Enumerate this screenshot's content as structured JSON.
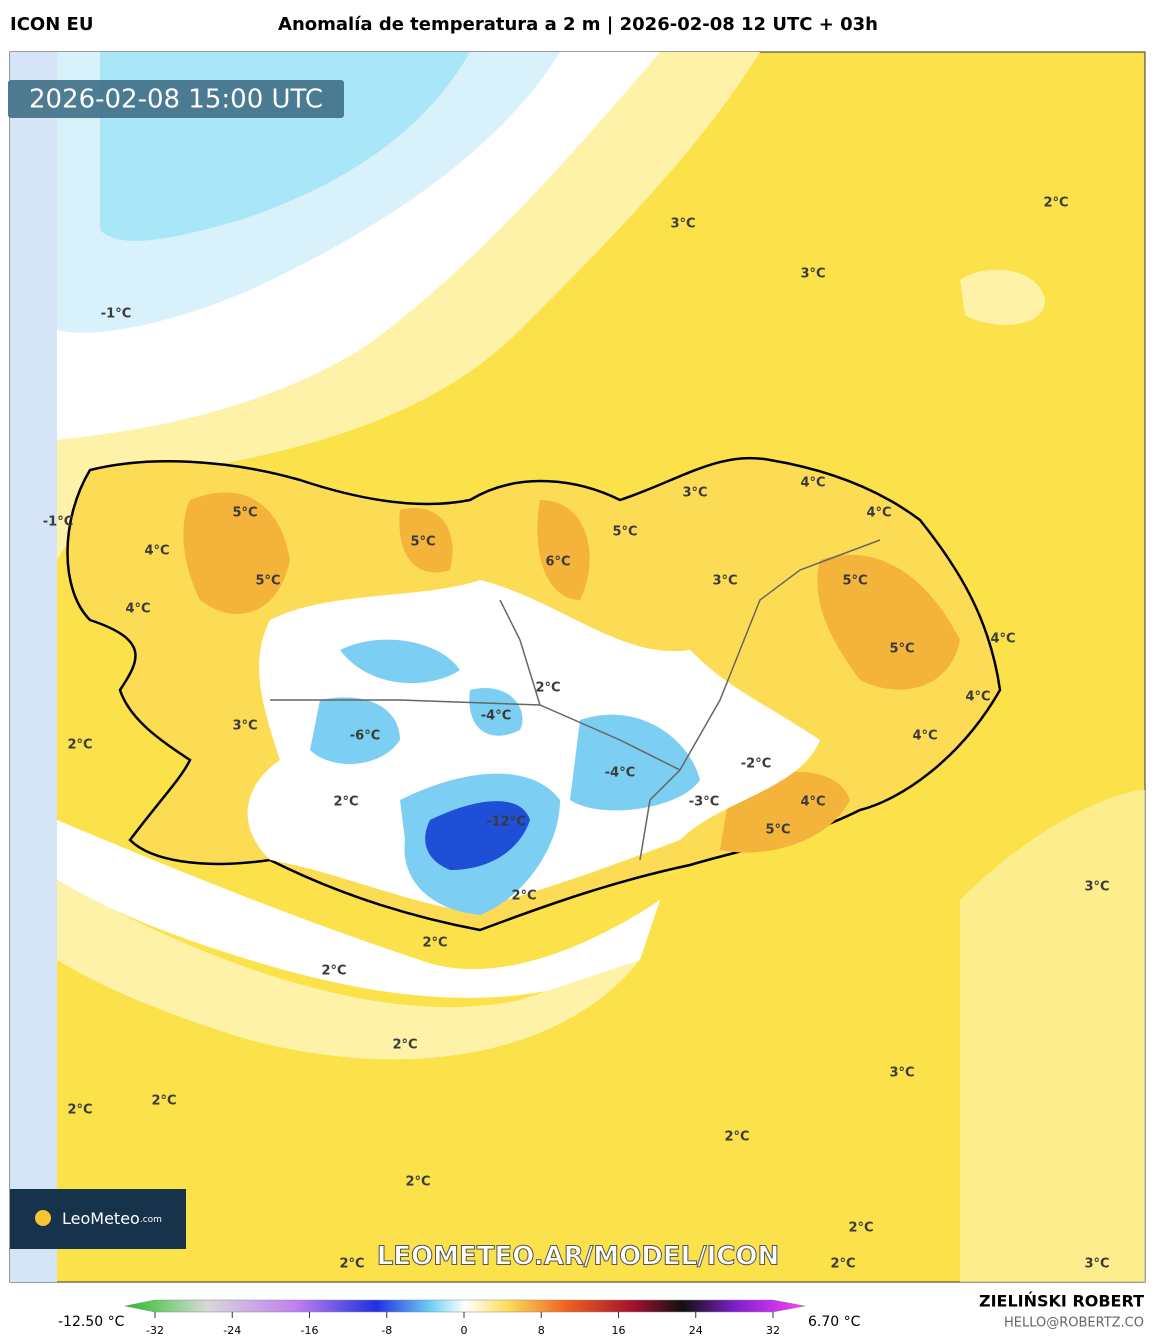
{
  "header": {
    "model": "ICON EU",
    "title": "Anomalía de temperatura a 2 m | 2026-02-08 12 UTC + 03h"
  },
  "timestamp": "2026-02-08 15:00 UTC",
  "map_labels": [
    "3°C",
    "2°C",
    "3°C",
    "-1°C",
    "3°C",
    "4°C",
    "4°C",
    "5°C",
    "-1°C",
    "5°C",
    "5°C",
    "4°C",
    "6°C",
    "5°C",
    "3°C",
    "5°C",
    "4°C",
    "4°C",
    "5°C",
    "2°C",
    "4°C",
    "-4°C",
    "3°C",
    "-6°C",
    "4°C",
    "2°C",
    "-2°C",
    "-4°C",
    "2°C",
    "-3°C",
    "4°C",
    "-12°C",
    "5°C",
    "3°C",
    "2°C",
    "2°C",
    "2°C",
    "2°C",
    "3°C",
    "2°C",
    "2°C",
    "2°C",
    "2°C",
    "2°C",
    "2°C",
    "2°C",
    "3°C"
  ],
  "logo": {
    "name": "LeoMeteo",
    "suffix": ".com"
  },
  "watermark": "LEOMETEO.AR/MODEL/ICON",
  "colorbar": {
    "min_label": "-12.50 °C",
    "max_label": "6.70 °C",
    "ticks": [
      -32,
      -24,
      -16,
      -8,
      0,
      8,
      16,
      24,
      32
    ]
  },
  "credits": {
    "author": "ZIELIŃSKI ROBERT",
    "email": "HELLO@ROBERTZ.CO"
  }
}
